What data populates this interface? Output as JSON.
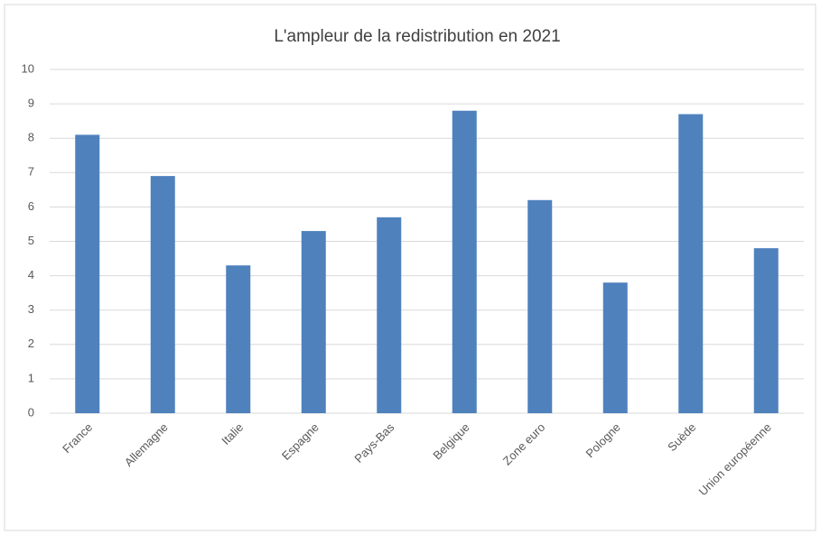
{
  "chart_data": {
    "type": "bar",
    "title": "L'ampleur de la redistribution en 2021",
    "categories": [
      "France",
      "Allemagne",
      "Italie",
      "Espagne",
      "Pays-Bas",
      "Belgique",
      "Zone euro",
      "Pologne",
      "Suède",
      "Union européenne"
    ],
    "values": [
      8.1,
      6.9,
      4.3,
      5.3,
      5.7,
      8.8,
      6.2,
      3.8,
      8.7,
      4.8
    ],
    "color": "#4f81bd",
    "ylim": [
      0,
      10
    ],
    "yticks": [
      0,
      1,
      2,
      3,
      4,
      5,
      6,
      7,
      8,
      9,
      10
    ],
    "grid": true
  }
}
